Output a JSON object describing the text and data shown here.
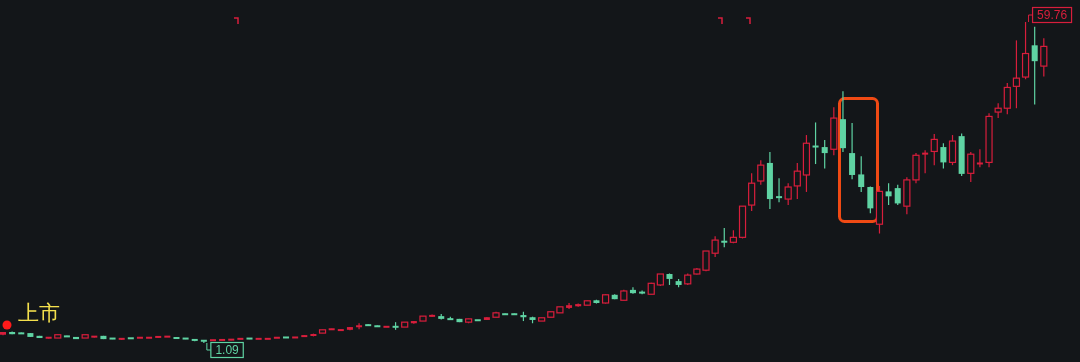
{
  "chart_data": {
    "type": "candlestick",
    "colors": [
      "#d81e3c",
      "#5fd3a3",
      "#5fd3a3",
      "#5fd3a3",
      "#5fd3a3",
      "#d81e3c",
      "#d81e3c",
      "#5fd3a3",
      "#5fd3a3",
      "#d81e3c",
      "#d81e3c",
      "#5fd3a3",
      "#5fd3a3",
      "#d81e3c",
      "#5fd3a3",
      "#d81e3c",
      "#d81e3c",
      "#d81e3c",
      "#d81e3c",
      "#5fd3a3",
      "#5fd3a3",
      "#5fd3a3",
      "#5fd3a3",
      "#d81e3c",
      "#d81e3c",
      "#d81e3c",
      "#d81e3c",
      "#5fd3a3",
      "#d81e3c",
      "#d81e3c",
      "#d81e3c",
      "#5fd3a3",
      "#d81e3c",
      "#d81e3c",
      "#d81e3c",
      "#d81e3c",
      "#d81e3c",
      "#d81e3c",
      "#d81e3c",
      "#d81e3c",
      "#5fd3a3",
      "#5fd3a3",
      "#d81e3c",
      "#5fd3a3",
      "#d81e3c",
      "#d81e3c",
      "#d81e3c",
      "#d81e3c",
      "#5fd3a3",
      "#5fd3a3",
      "#5fd3a3",
      "#d81e3c",
      "#5fd3a3",
      "#d81e3c",
      "#d81e3c",
      "#5fd3a3",
      "#5fd3a3",
      "#5fd3a3",
      "#5fd3a3",
      "#d81e3c",
      "#d81e3c",
      "#d81e3c",
      "#d81e3c",
      "#d81e3c",
      "#d81e3c",
      "#5fd3a3",
      "#d81e3c",
      "#5fd3a3",
      "#d81e3c",
      "#5fd3a3",
      "#5fd3a3",
      "#d81e3c",
      "#d81e3c",
      "#5fd3a3",
      "#5fd3a3",
      "#d81e3c",
      "#d81e3c",
      "#d81e3c",
      "#d81e3c",
      "#5fd3a3",
      "#d81e3c",
      "#d81e3c",
      "#d81e3c",
      "#d81e3c",
      "#5fd3a3",
      "#5fd3a3",
      "#d81e3c",
      "#d81e3c",
      "#d81e3c",
      "#5fd3a3",
      "#5fd3a3",
      "#d81e3c",
      "#5fd3a3",
      "#5fd3a3",
      "#5fd3a3",
      "#5fd3a3",
      "#d81e3c",
      "#5fd3a3",
      "#5fd3a3",
      "#d81e3c",
      "#d81e3c",
      "#d81e3c",
      "#d81e3c",
      "#5fd3a3",
      "#d81e3c",
      "#5fd3a3",
      "#d81e3c",
      "#d81e3c",
      "#d81e3c",
      "#d81e3c",
      "#d81e3c",
      "#d81e3c",
      "#d81e3c",
      "#5fd3a3",
      "#d81e3c"
    ],
    "categories": [
      null,
      null,
      null,
      null,
      null,
      null,
      null,
      null,
      null,
      null,
      null,
      null,
      null,
      null,
      null,
      null,
      null,
      null,
      null,
      null,
      null,
      null,
      null,
      null,
      null,
      null,
      null,
      null,
      null,
      null,
      null,
      null,
      null,
      null,
      null,
      null,
      null,
      null,
      null,
      null,
      null,
      null,
      null,
      null,
      null,
      null,
      null,
      null,
      null,
      null,
      null,
      null,
      null,
      null,
      null,
      null,
      null,
      null,
      null,
      null,
      null,
      null,
      null,
      null,
      null,
      null,
      null,
      null,
      null,
      null,
      null,
      null,
      null,
      null,
      null,
      null,
      null,
      null,
      null,
      null,
      null,
      null,
      null,
      null,
      null,
      null,
      null,
      null,
      null,
      null,
      null,
      null,
      null,
      null,
      null,
      null,
      null,
      null,
      null,
      null,
      null,
      null,
      null,
      null,
      null,
      null,
      null,
      null,
      null,
      null,
      null,
      null,
      null,
      null,
      null
    ],
    "ohlc": [
      [
        2.6,
        3.1,
        2.5,
        3.1
      ],
      [
        3.1,
        3.2,
        2.7,
        2.7
      ],
      [
        2.9,
        3.0,
        2.8,
        2.8
      ],
      [
        2.9,
        2.9,
        2.2,
        2.2
      ],
      [
        2.4,
        2.4,
        2.0,
        2.0
      ],
      [
        2.0,
        2.1,
        1.9,
        2.1
      ],
      [
        2.0,
        2.6,
        2.0,
        2.6
      ],
      [
        2.4,
        2.4,
        2.2,
        2.2
      ],
      [
        2.2,
        2.2,
        1.8,
        1.8
      ],
      [
        2.0,
        2.6,
        2.0,
        2.6
      ],
      [
        2.2,
        2.3,
        2.1,
        2.3
      ],
      [
        2.4,
        2.4,
        1.8,
        1.8
      ],
      [
        2.0,
        2.0,
        1.8,
        1.8
      ],
      [
        1.8,
        1.9,
        1.7,
        1.9
      ],
      [
        2.0,
        2.0,
        1.9,
        1.9
      ],
      [
        2.0,
        2.1,
        2.0,
        2.1
      ],
      [
        2.0,
        2.1,
        2.0,
        2.1
      ],
      [
        2.1,
        2.3,
        2.1,
        2.3
      ],
      [
        2.2,
        2.3,
        2.2,
        2.3
      ],
      [
        2.1,
        2.1,
        1.9,
        1.9
      ],
      [
        2.0,
        2.0,
        1.8,
        1.8
      ],
      [
        1.8,
        1.8,
        1.4,
        1.5
      ],
      [
        1.6,
        1.6,
        1.09,
        1.4
      ],
      [
        1.5,
        1.7,
        1.5,
        1.7
      ],
      [
        1.6,
        1.7,
        1.6,
        1.7
      ],
      [
        1.6,
        1.8,
        1.6,
        1.8
      ],
      [
        1.8,
        1.9,
        1.8,
        1.9
      ],
      [
        2.0,
        2.0,
        1.8,
        1.8
      ],
      [
        1.8,
        1.9,
        1.8,
        1.9
      ],
      [
        1.8,
        1.9,
        1.8,
        1.9
      ],
      [
        2.0,
        2.1,
        2.0,
        2.1
      ],
      [
        2.2,
        2.2,
        2.0,
        2.0
      ],
      [
        2.0,
        2.2,
        2.0,
        2.2
      ],
      [
        2.3,
        2.5,
        2.3,
        2.4
      ],
      [
        2.4,
        2.8,
        2.3,
        2.7
      ],
      [
        2.9,
        3.5,
        2.9,
        3.5
      ],
      [
        3.5,
        3.7,
        3.5,
        3.7
      ],
      [
        3.4,
        3.5,
        3.4,
        3.5
      ],
      [
        3.5,
        4.0,
        3.4,
        4.0
      ],
      [
        4.1,
        4.7,
        3.6,
        4.2
      ],
      [
        4.4,
        4.5,
        4.3,
        4.3
      ],
      [
        4.2,
        4.3,
        4.1,
        4.1
      ],
      [
        4.0,
        4.1,
        4.0,
        4.1
      ],
      [
        4.1,
        4.9,
        3.5,
        4.0
      ],
      [
        4.0,
        4.9,
        4.0,
        4.9
      ],
      [
        4.7,
        5.1,
        4.6,
        5.1
      ],
      [
        5.1,
        6.0,
        5.1,
        6.0
      ],
      [
        6.0,
        6.3,
        5.9,
        6.1
      ],
      [
        6.0,
        6.4,
        5.4,
        5.5
      ],
      [
        5.5,
        5.9,
        5.3,
        5.4
      ],
      [
        5.5,
        5.5,
        4.9,
        4.9
      ],
      [
        4.9,
        5.5,
        4.7,
        5.5
      ],
      [
        5.3,
        5.3,
        5.1,
        5.2
      ],
      [
        5.3,
        5.8,
        5.3,
        5.8
      ],
      [
        5.8,
        6.8,
        5.8,
        6.6
      ],
      [
        6.4,
        6.5,
        6.3,
        6.3
      ],
      [
        6.4,
        6.5,
        6.2,
        6.3
      ],
      [
        6.2,
        6.8,
        5.1,
        5.8
      ],
      [
        5.8,
        5.9,
        4.7,
        5.3
      ],
      [
        5.1,
        5.7,
        5.1,
        5.7
      ],
      [
        5.8,
        6.8,
        5.8,
        6.8
      ],
      [
        6.6,
        7.7,
        6.6,
        7.7
      ],
      [
        7.5,
        8.4,
        7.3,
        8.0
      ],
      [
        7.8,
        8.3,
        7.7,
        8.2
      ],
      [
        8.0,
        8.8,
        8.0,
        8.8
      ],
      [
        8.9,
        9.0,
        8.3,
        8.4
      ],
      [
        8.4,
        10.0,
        8.3,
        9.9
      ],
      [
        9.9,
        10.0,
        9.1,
        9.1
      ],
      [
        8.9,
        10.8,
        8.9,
        10.6
      ],
      [
        10.8,
        11.3,
        10.1,
        10.2
      ],
      [
        10.4,
        10.7,
        10.0,
        10.2
      ],
      [
        10.0,
        12.1,
        10.0,
        12.0
      ],
      [
        11.7,
        13.7,
        11.5,
        13.7
      ],
      [
        13.7,
        13.8,
        11.7,
        12.8
      ],
      [
        12.4,
        12.8,
        11.3,
        11.7
      ],
      [
        11.9,
        13.8,
        11.7,
        13.5
      ],
      [
        13.7,
        14.8,
        13.6,
        14.6
      ],
      [
        14.4,
        17.9,
        14.2,
        17.9
      ],
      [
        17.5,
        20.6,
        16.8,
        19.9
      ],
      [
        19.7,
        22.1,
        18.6,
        19.5
      ],
      [
        19.5,
        21.7,
        19.3,
        20.4
      ],
      [
        20.4,
        26.1,
        20.2,
        26.1
      ],
      [
        26.3,
        32.1,
        25.2,
        30.3
      ],
      [
        30.7,
        34.5,
        30.0,
        33.6
      ],
      [
        34.0,
        36.0,
        25.6,
        27.4
      ],
      [
        27.9,
        31.2,
        26.8,
        27.6
      ],
      [
        27.4,
        30.3,
        26.3,
        29.6
      ],
      [
        29.8,
        34.0,
        27.4,
        32.5
      ],
      [
        31.8,
        39.1,
        28.7,
        37.6
      ],
      [
        37.1,
        41.4,
        33.8,
        36.9
      ],
      [
        36.9,
        38.2,
        33.0,
        35.8
      ],
      [
        36.5,
        44.2,
        35.4,
        42.2
      ],
      [
        42.0,
        47.1,
        36.0,
        36.7
      ],
      [
        35.8,
        41.3,
        31.0,
        31.8
      ],
      [
        31.9,
        35.2,
        28.7,
        29.6
      ],
      [
        29.6,
        29.7,
        24.8,
        25.7
      ],
      [
        22.8,
        29.8,
        21.1,
        28.8
      ],
      [
        28.8,
        30.3,
        26.3,
        27.9
      ],
      [
        29.4,
        30.0,
        26.3,
        26.6
      ],
      [
        26.1,
        31.4,
        24.6,
        30.9
      ],
      [
        30.9,
        35.8,
        30.3,
        35.4
      ],
      [
        35.6,
        36.3,
        32.1,
        35.8
      ],
      [
        36.1,
        39.3,
        33.6,
        38.3
      ],
      [
        36.9,
        37.6,
        33.0,
        34.1
      ],
      [
        34.1,
        39.1,
        33.6,
        38.0
      ],
      [
        38.9,
        39.4,
        31.6,
        32.0
      ],
      [
        32.1,
        36.0,
        30.5,
        35.6
      ],
      [
        33.8,
        36.5,
        33.2,
        34.0
      ],
      [
        34.1,
        43.1,
        33.2,
        42.5
      ],
      [
        43.3,
        44.9,
        42.2,
        44.0
      ],
      [
        44.0,
        48.6,
        42.9,
        47.8
      ],
      [
        48.0,
        56.4,
        44.0,
        49.5
      ],
      [
        49.7,
        59.76,
        49.3,
        54.0
      ],
      [
        55.5,
        58.9,
        44.7,
        52.6
      ],
      [
        51.7,
        56.8,
        49.8,
        55.3
      ]
    ],
    "annotations": [
      "上市",
      "59.76",
      "1.09"
    ]
  }
}
